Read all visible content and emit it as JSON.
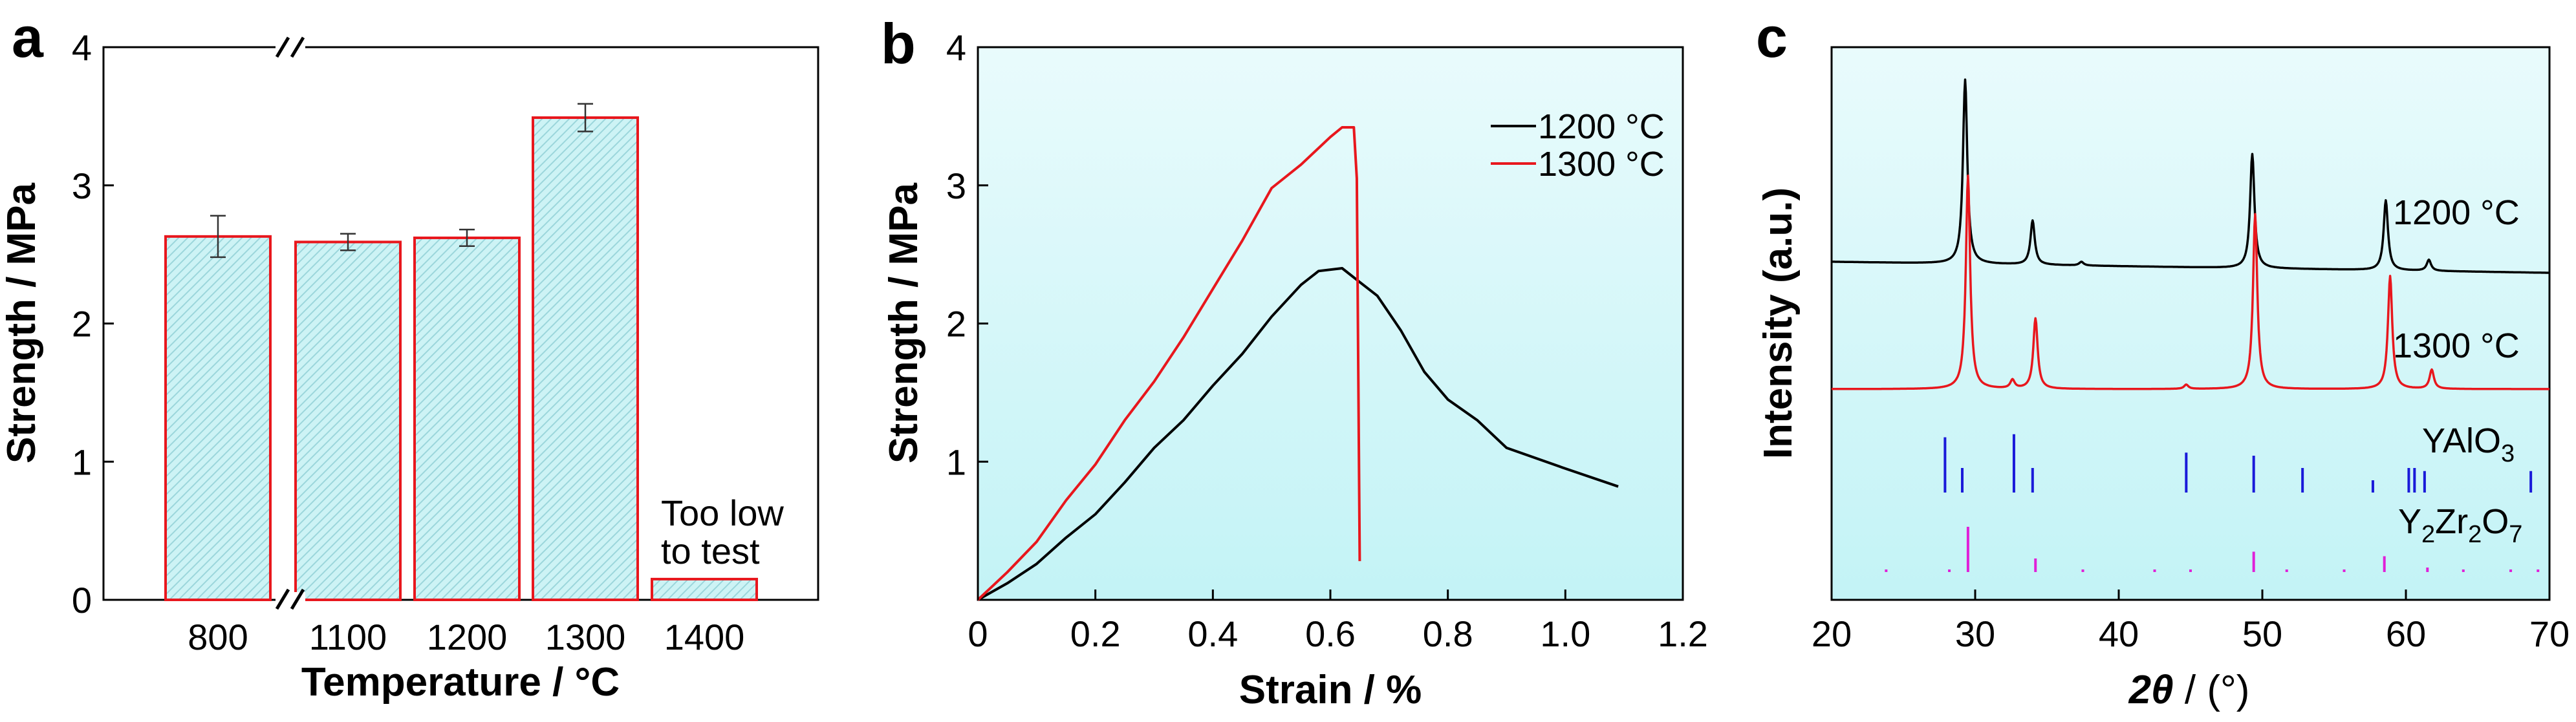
{
  "panels": {
    "a": {
      "letter": "a"
    },
    "b": {
      "letter": "b"
    },
    "c": {
      "letter": "c"
    }
  },
  "chart_data": [
    {
      "panel": "a",
      "type": "bar",
      "xlabel": "Temperature / °C",
      "ylabel": "Strength / MPa",
      "categories": [
        "800",
        "1100",
        "1200",
        "1300",
        "1400"
      ],
      "values": [
        2.63,
        2.59,
        2.62,
        3.49,
        0.15
      ],
      "errors": [
        0.15,
        0.06,
        0.06,
        0.1,
        null
      ],
      "ylim": [
        0,
        4
      ],
      "yticks": [
        "0",
        "1",
        "2",
        "3",
        "4"
      ],
      "axis_break": "between 800 and 1100",
      "bar_style": "light cyan hatched fill, red outline",
      "annotation": [
        "Too low",
        "to test"
      ],
      "colors": {
        "bar_edge": "#e8171d",
        "bar_fill": "#c8f1f4",
        "hatch": "#9fd9dd"
      }
    },
    {
      "panel": "b",
      "type": "line",
      "xlabel": "Strain / %",
      "ylabel": "Strength / MPa",
      "xlim": [
        0,
        1.2
      ],
      "ylim": [
        0,
        4
      ],
      "xticks": [
        "0",
        "0.2",
        "0.4",
        "0.6",
        "0.8",
        "1.0",
        "1.2"
      ],
      "yticks": [
        "1",
        "2",
        "3",
        "4"
      ],
      "legend_position": "top-right",
      "series": [
        {
          "name": "1200 °C",
          "color": "#000000",
          "x": [
            0,
            0.05,
            0.1,
            0.15,
            0.2,
            0.25,
            0.3,
            0.35,
            0.4,
            0.45,
            0.5,
            0.55,
            0.58,
            0.62,
            0.65,
            0.68,
            0.72,
            0.76,
            0.8,
            0.85,
            0.9,
            1.0,
            1.09
          ],
          "y": [
            0,
            0.12,
            0.26,
            0.45,
            0.62,
            0.85,
            1.1,
            1.3,
            1.55,
            1.78,
            2.05,
            2.28,
            2.38,
            2.4,
            2.3,
            2.2,
            1.95,
            1.65,
            1.45,
            1.3,
            1.1,
            0.95,
            0.82
          ]
        },
        {
          "name": "1300 °C",
          "color": "#e8171d",
          "x": [
            0,
            0.05,
            0.1,
            0.15,
            0.2,
            0.25,
            0.3,
            0.35,
            0.4,
            0.45,
            0.5,
            0.55,
            0.6,
            0.62,
            0.64,
            0.645,
            0.65
          ],
          "y": [
            0,
            0.2,
            0.42,
            0.72,
            0.98,
            1.3,
            1.58,
            1.9,
            2.25,
            2.6,
            2.98,
            3.15,
            3.35,
            3.42,
            3.42,
            3.05,
            0.28
          ]
        }
      ]
    },
    {
      "panel": "c",
      "type": "line",
      "xlabel": "2θ / (°)",
      "ylabel": "Intensity (a.u.)",
      "xlim": [
        20,
        70
      ],
      "xticks": [
        "20",
        "30",
        "40",
        "50",
        "60",
        "70"
      ],
      "series": [
        {
          "name": "1200 °C",
          "color": "#000000",
          "peaks": [
            [
              29.3,
              1.0
            ],
            [
              34.0,
              0.24
            ],
            [
              37.4,
              0.02
            ],
            [
              49.3,
              0.62
            ],
            [
              58.6,
              0.38
            ],
            [
              61.6,
              0.06
            ]
          ]
        },
        {
          "name": "1300 °C",
          "color": "#e8171d",
          "peaks": [
            [
              29.5,
              1.0
            ],
            [
              32.6,
              0.04
            ],
            [
              34.2,
              0.33
            ],
            [
              44.7,
              0.02
            ],
            [
              49.5,
              0.82
            ],
            [
              58.9,
              0.53
            ],
            [
              61.8,
              0.09
            ]
          ]
        }
      ],
      "references": [
        {
          "label": "YAlO3",
          "label_main": "YAlO",
          "label_sub": "3",
          "color": "#1a1ad9",
          "lines": [
            [
              27.9,
              0.9
            ],
            [
              29.1,
              0.4
            ],
            [
              32.7,
              0.95
            ],
            [
              34.0,
              0.4
            ],
            [
              44.7,
              0.65
            ],
            [
              49.4,
              0.6
            ],
            [
              52.8,
              0.4
            ],
            [
              57.7,
              0.2
            ],
            [
              60.2,
              0.4
            ],
            [
              60.6,
              0.4
            ],
            [
              61.3,
              0.35
            ],
            [
              68.7,
              0.35
            ]
          ]
        },
        {
          "label": "Y2Zr2O7",
          "label_parts": [
            "Y",
            "2",
            "Zr",
            "2",
            "O",
            "7"
          ],
          "color": "#e020d8",
          "lines": [
            [
              23.8,
              0.05
            ],
            [
              28.2,
              0.05
            ],
            [
              29.5,
              1.0
            ],
            [
              34.2,
              0.3
            ],
            [
              37.5,
              0.05
            ],
            [
              42.5,
              0.05
            ],
            [
              45.0,
              0.05
            ],
            [
              49.4,
              0.45
            ],
            [
              51.7,
              0.05
            ],
            [
              55.7,
              0.05
            ],
            [
              58.5,
              0.35
            ],
            [
              61.5,
              0.1
            ],
            [
              64.0,
              0.05
            ],
            [
              67.3,
              0.05
            ],
            [
              69.2,
              0.05
            ]
          ]
        }
      ]
    }
  ]
}
